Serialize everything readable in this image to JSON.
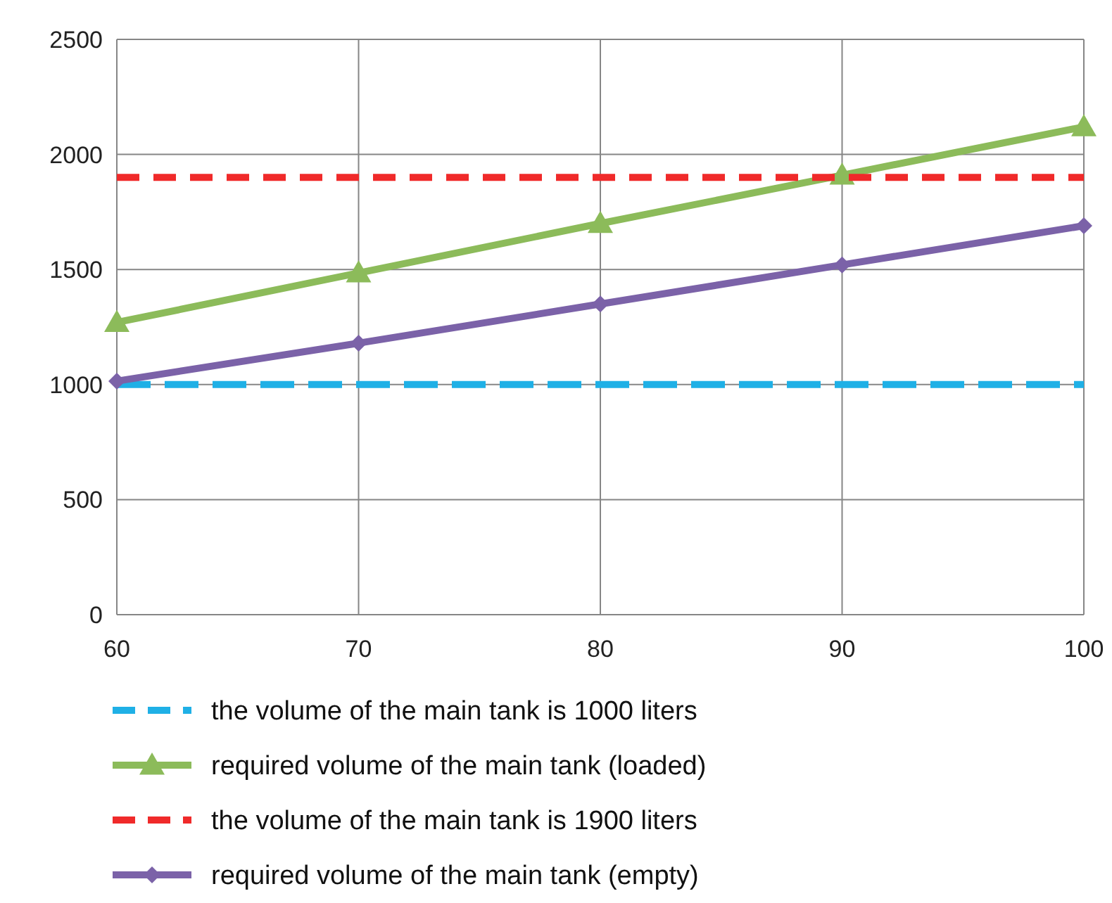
{
  "chart_data": {
    "type": "line",
    "x": [
      60,
      70,
      80,
      90,
      100
    ],
    "xlim": [
      60,
      100
    ],
    "xticks": [
      60,
      70,
      80,
      90,
      100
    ],
    "ylim": [
      0,
      2500
    ],
    "yticks": [
      0,
      500,
      1000,
      1500,
      2000,
      2500
    ],
    "grid": true,
    "legend": "bottom",
    "series": [
      {
        "name": "the volume of the main tank is 1000 liters",
        "color": "#1fb0e6",
        "values": [
          1000,
          1000,
          1000,
          1000,
          1000
        ],
        "line_style": "dashed",
        "marker": "none"
      },
      {
        "name": "required volume of the main tank (loaded)",
        "color": "#8cbb5a",
        "values": [
          1270,
          1485,
          1700,
          1910,
          2120
        ],
        "line_style": "solid",
        "marker": "triangle"
      },
      {
        "name": "the volume of the main tank is 1900 liters",
        "color": "#f02a2a",
        "values": [
          1900,
          1900,
          1900,
          1900,
          1900
        ],
        "line_style": "dashed",
        "marker": "none"
      },
      {
        "name": "required volume of the main tank (empty)",
        "color": "#7b62a8",
        "values": [
          1015,
          1180,
          1350,
          1520,
          1690
        ],
        "line_style": "solid",
        "marker": "diamond"
      }
    ]
  }
}
